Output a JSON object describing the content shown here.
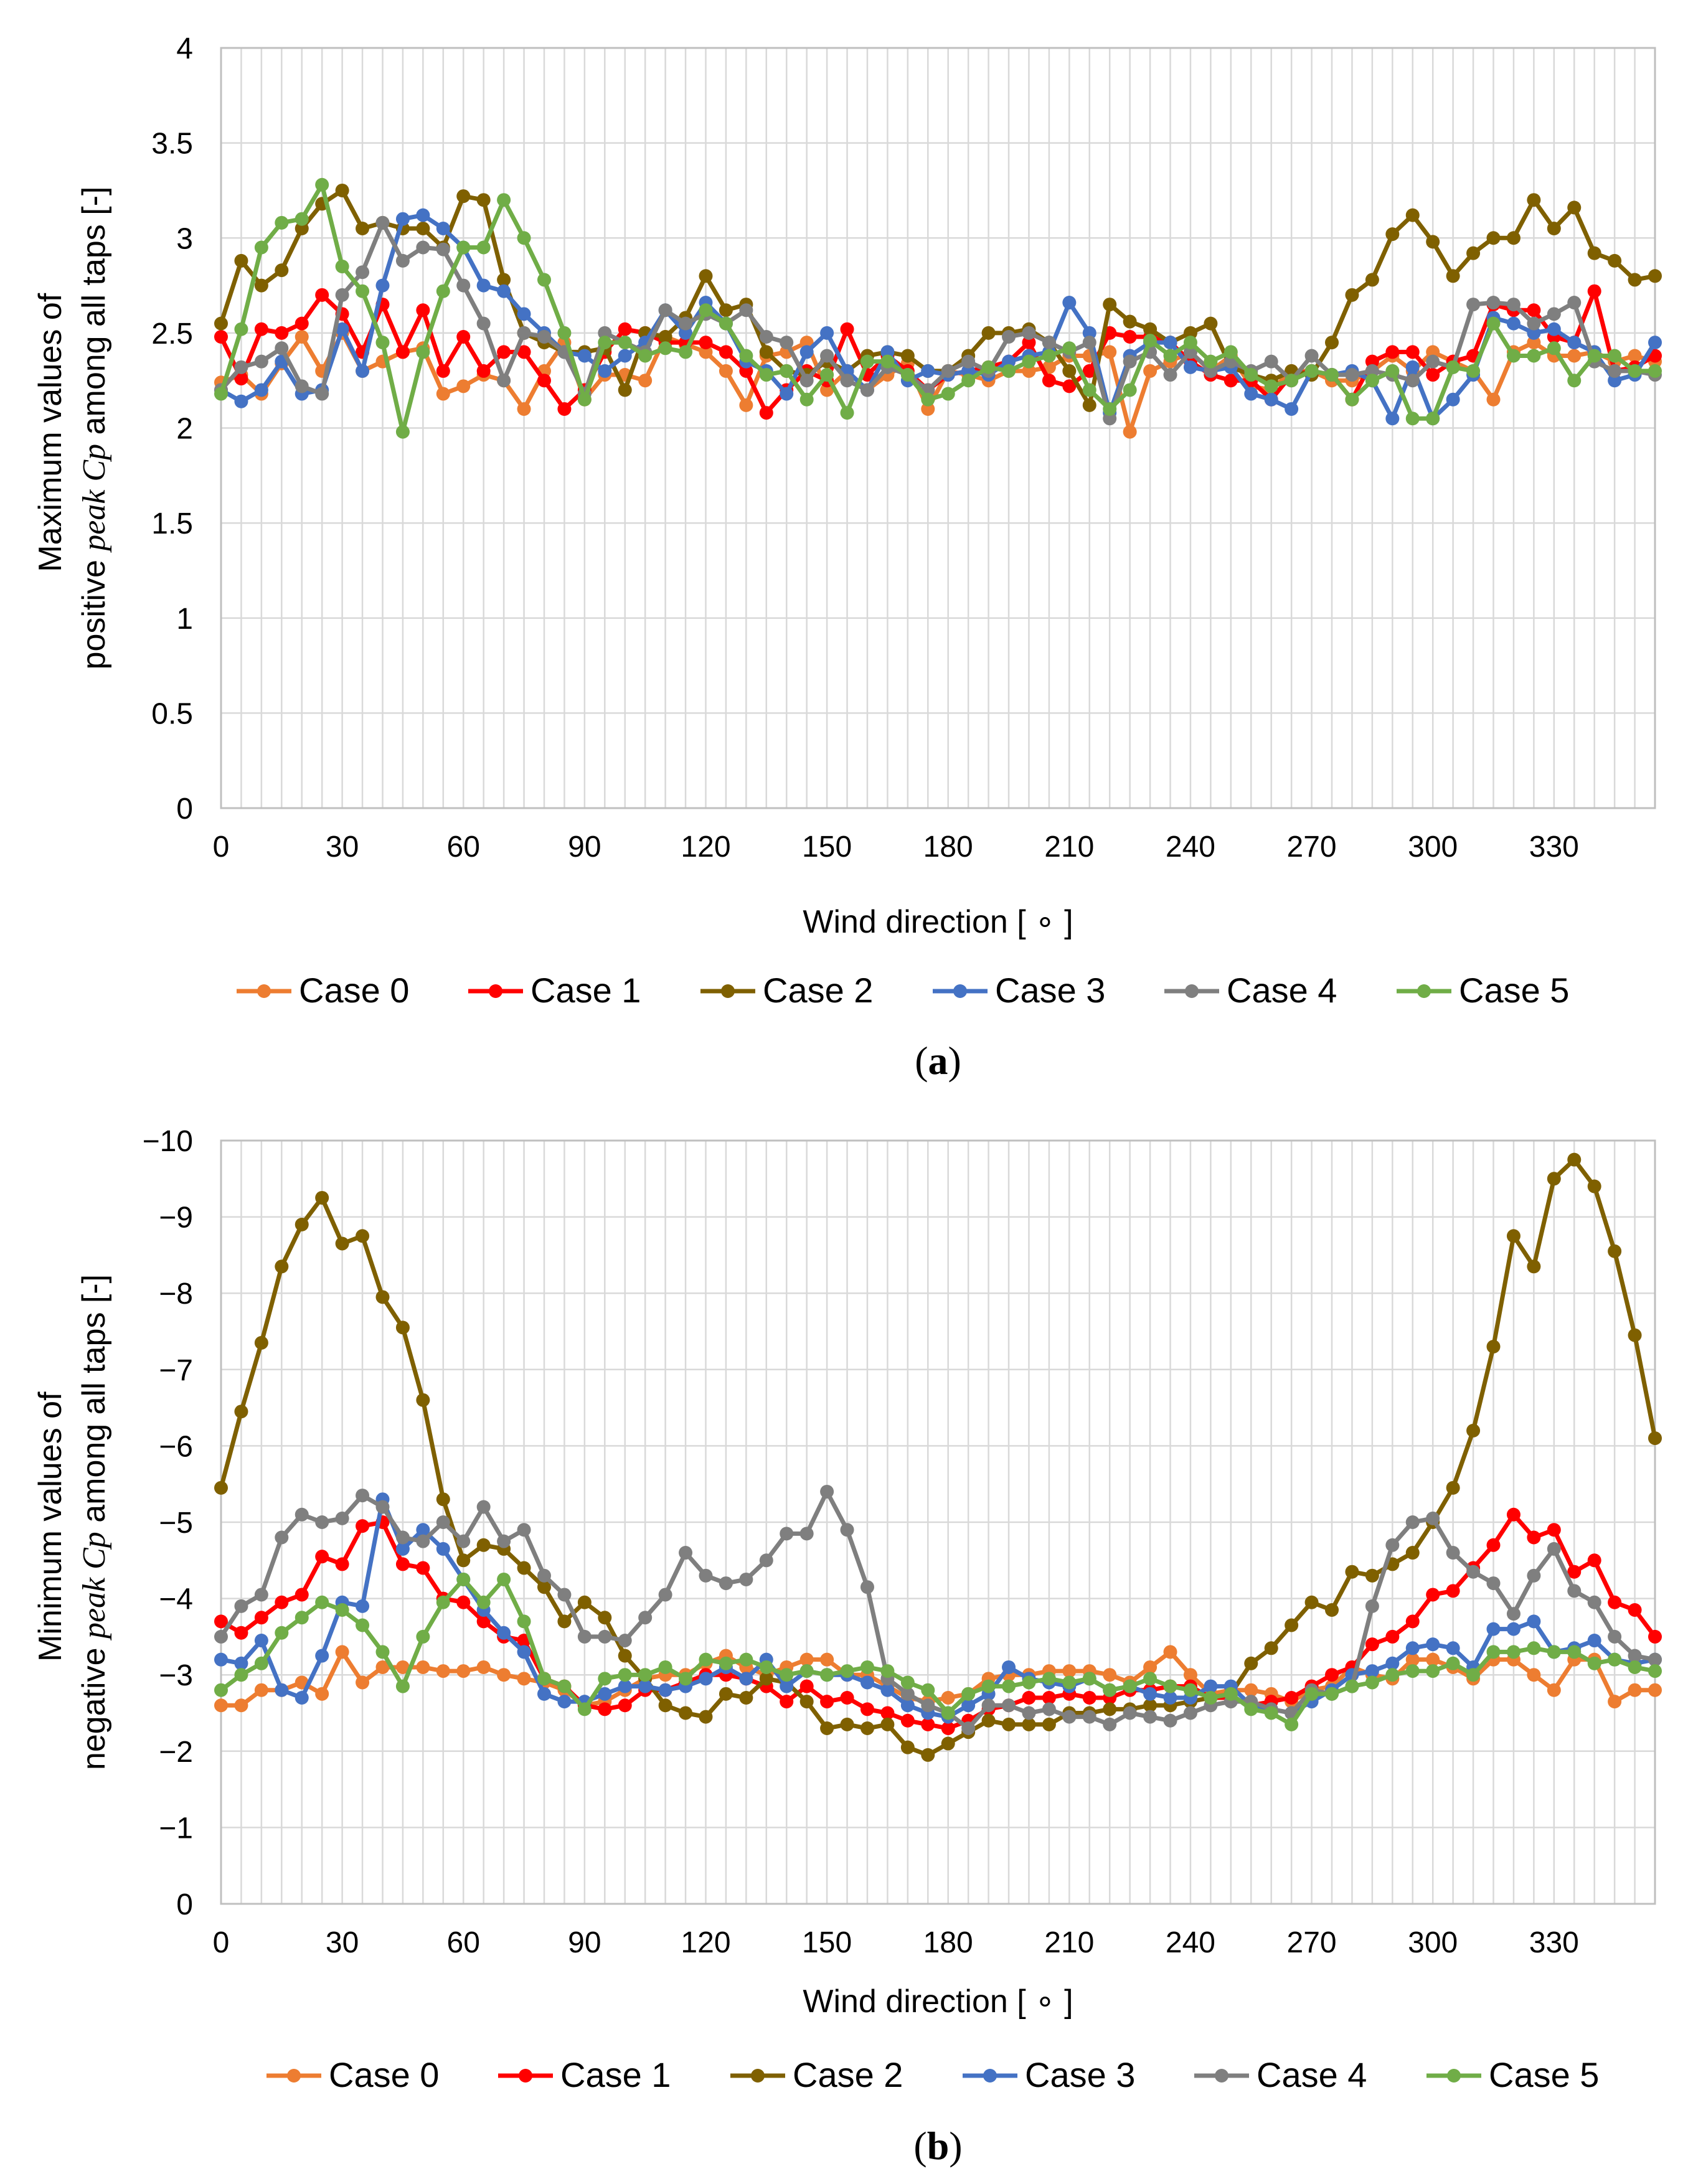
{
  "colors": {
    "Case 0": "#ED7D31",
    "Case 1": "#FF0000",
    "Case 2": "#7F6000",
    "Case 3": "#4472C4",
    "Case 4": "#7F7F7F",
    "Case 5": "#70AD47"
  },
  "chart_data": [
    {
      "type": "line",
      "panel": "a",
      "panel_label": {
        "open": "(",
        "letter": "a",
        "close": ")"
      },
      "xlabel": "Wind direction [ ∘ ]",
      "ylabel_line1": "Maximum values of",
      "ylabel_line2_pre": "positive ",
      "ylabel_line2_ital": "peak Cp",
      "ylabel_line2_post": " among all taps [-]",
      "xlim": [
        0,
        355
      ],
      "ylim": [
        0,
        4
      ],
      "y_inverted": false,
      "xticks": [
        0,
        30,
        60,
        90,
        120,
        150,
        180,
        210,
        240,
        270,
        300,
        330
      ],
      "yticks": [
        0,
        0.5,
        1,
        1.5,
        2,
        2.5,
        3,
        3.5,
        4
      ],
      "ytick_labels": [
        "0",
        "0.5",
        "1",
        "1.5",
        "2",
        "2.5",
        "3",
        "3.5",
        "4"
      ],
      "legend": [
        "Case 0",
        "Case 1",
        "Case 2",
        "Case 3",
        "Case 4",
        "Case 5"
      ],
      "series": [
        {
          "name": "Case 0",
          "values": [
            2.24,
            2.28,
            2.18,
            2.34,
            2.48,
            2.3,
            2.5,
            2.3,
            2.35,
            2.4,
            2.42,
            2.18,
            2.22,
            2.28,
            2.25,
            2.1,
            2.3,
            2.45,
            2.15,
            2.28,
            2.28,
            2.25,
            2.48,
            2.44,
            2.4,
            2.3,
            2.12,
            2.38,
            2.4,
            2.45,
            2.2,
            2.3,
            2.2,
            2.28,
            2.34,
            2.1,
            2.3,
            2.28,
            2.25,
            2.3,
            2.3,
            2.32,
            2.38,
            2.38,
            2.4,
            1.98,
            2.3,
            2.35,
            2.4,
            2.3,
            2.38,
            2.22,
            2.2,
            2.3,
            2.3,
            2.25,
            2.25,
            2.3,
            2.38,
            2.3,
            2.4,
            2.35,
            2.3,
            2.15,
            2.4,
            2.45,
            2.38,
            2.38,
            2.4,
            2.35,
            2.38,
            2.35
          ]
        },
        {
          "name": "Case 1",
          "values": [
            2.48,
            2.26,
            2.52,
            2.5,
            2.55,
            2.7,
            2.6,
            2.4,
            2.65,
            2.4,
            2.62,
            2.3,
            2.48,
            2.3,
            2.4,
            2.4,
            2.25,
            2.1,
            2.2,
            2.4,
            2.52,
            2.5,
            2.45,
            2.45,
            2.45,
            2.4,
            2.3,
            2.08,
            2.2,
            2.3,
            2.25,
            2.52,
            2.28,
            2.38,
            2.3,
            2.2,
            2.28,
            2.3,
            2.32,
            2.35,
            2.45,
            2.25,
            2.22,
            2.3,
            2.5,
            2.48,
            2.48,
            2.45,
            2.35,
            2.28,
            2.25,
            2.25,
            2.15,
            2.28,
            2.3,
            2.28,
            2.15,
            2.35,
            2.4,
            2.4,
            2.28,
            2.35,
            2.38,
            2.65,
            2.62,
            2.62,
            2.48,
            2.45,
            2.72,
            2.3,
            2.32,
            2.38
          ]
        },
        {
          "name": "Case 2",
          "values": [
            2.55,
            2.88,
            2.75,
            2.83,
            3.05,
            3.18,
            3.25,
            3.05,
            3.08,
            3.05,
            3.05,
            2.95,
            3.22,
            3.2,
            2.78,
            2.5,
            2.45,
            2.4,
            2.4,
            2.42,
            2.2,
            2.5,
            2.48,
            2.58,
            2.8,
            2.62,
            2.65,
            2.4,
            2.3,
            2.28,
            2.35,
            2.3,
            2.38,
            2.4,
            2.38,
            2.3,
            2.3,
            2.38,
            2.5,
            2.5,
            2.52,
            2.45,
            2.3,
            2.12,
            2.65,
            2.56,
            2.52,
            2.45,
            2.5,
            2.55,
            2.32,
            2.28,
            2.25,
            2.3,
            2.28,
            2.45,
            2.7,
            2.78,
            3.02,
            3.12,
            2.98,
            2.8,
            2.92,
            3.0,
            3.0,
            3.2,
            3.05,
            3.16,
            2.92,
            2.88,
            2.78,
            2.8
          ]
        },
        {
          "name": "Case 3",
          "values": [
            2.2,
            2.14,
            2.2,
            2.35,
            2.18,
            2.2,
            2.52,
            2.3,
            2.75,
            3.1,
            3.12,
            3.05,
            2.95,
            2.75,
            2.72,
            2.6,
            2.5,
            2.4,
            2.38,
            2.3,
            2.38,
            2.45,
            2.62,
            2.5,
            2.66,
            2.55,
            2.35,
            2.3,
            2.18,
            2.4,
            2.5,
            2.3,
            2.2,
            2.4,
            2.25,
            2.3,
            2.28,
            2.3,
            2.28,
            2.35,
            2.38,
            2.4,
            2.66,
            2.5,
            2.08,
            2.38,
            2.45,
            2.45,
            2.32,
            2.3,
            2.32,
            2.18,
            2.15,
            2.1,
            2.3,
            2.28,
            2.3,
            2.25,
            2.05,
            2.32,
            2.05,
            2.15,
            2.28,
            2.58,
            2.55,
            2.5,
            2.52,
            2.45,
            2.4,
            2.25,
            2.28,
            2.45
          ]
        },
        {
          "name": "Case 4",
          "values": [
            2.2,
            2.32,
            2.35,
            2.42,
            2.22,
            2.18,
            2.7,
            2.82,
            3.08,
            2.88,
            2.95,
            2.94,
            2.75,
            2.55,
            2.25,
            2.5,
            2.48,
            2.4,
            2.18,
            2.5,
            2.45,
            2.4,
            2.62,
            2.55,
            2.6,
            2.55,
            2.62,
            2.48,
            2.45,
            2.25,
            2.38,
            2.25,
            2.2,
            2.32,
            2.28,
            2.2,
            2.3,
            2.35,
            2.3,
            2.48,
            2.5,
            2.45,
            2.4,
            2.45,
            2.05,
            2.35,
            2.4,
            2.28,
            2.4,
            2.3,
            2.35,
            2.3,
            2.35,
            2.25,
            2.38,
            2.28,
            2.28,
            2.3,
            2.28,
            2.25,
            2.35,
            2.32,
            2.65,
            2.66,
            2.65,
            2.55,
            2.6,
            2.66,
            2.35,
            2.3,
            2.3,
            2.28
          ]
        },
        {
          "name": "Case 5",
          "values": [
            2.18,
            2.52,
            2.95,
            3.08,
            3.1,
            3.28,
            2.85,
            2.72,
            2.45,
            1.98,
            2.4,
            2.72,
            2.95,
            2.95,
            3.2,
            3.0,
            2.78,
            2.5,
            2.15,
            2.45,
            2.45,
            2.38,
            2.42,
            2.4,
            2.62,
            2.55,
            2.38,
            2.28,
            2.3,
            2.15,
            2.28,
            2.08,
            2.35,
            2.35,
            2.28,
            2.15,
            2.18,
            2.25,
            2.32,
            2.3,
            2.35,
            2.38,
            2.42,
            2.2,
            2.1,
            2.2,
            2.46,
            2.38,
            2.45,
            2.35,
            2.4,
            2.28,
            2.22,
            2.25,
            2.3,
            2.28,
            2.15,
            2.25,
            2.3,
            2.05,
            2.05,
            2.32,
            2.3,
            2.55,
            2.38,
            2.38,
            2.42,
            2.25,
            2.38,
            2.38,
            2.3,
            2.3
          ]
        }
      ]
    },
    {
      "type": "line",
      "panel": "b",
      "panel_label": {
        "open": "(",
        "letter": "b",
        "close": ")"
      },
      "xlabel": "Wind direction [ ∘ ]",
      "ylabel_line1": "Minimum values of",
      "ylabel_line2_pre": "negative ",
      "ylabel_line2_ital": "peak Cp",
      "ylabel_line2_post": " among all taps [-]",
      "xlim": [
        0,
        355
      ],
      "ylim": [
        0,
        -10
      ],
      "y_inverted": true,
      "xticks": [
        0,
        30,
        60,
        90,
        120,
        150,
        180,
        210,
        240,
        270,
        300,
        330
      ],
      "yticks": [
        0,
        -1,
        -2,
        -3,
        -4,
        -5,
        -6,
        -7,
        -8,
        -9,
        -10
      ],
      "ytick_labels": [
        "0",
        "−1",
        "−2",
        "−3",
        "−4",
        "−5",
        "−6",
        "−7",
        "−8",
        "−9",
        "−10"
      ],
      "legend": [
        "Case 0",
        "Case 1",
        "Case 2",
        "Case 3",
        "Case 4",
        "Case 5"
      ],
      "series": [
        {
          "name": "Case 0",
          "values": [
            -2.6,
            -2.6,
            -2.8,
            -2.8,
            -2.9,
            -2.75,
            -3.3,
            -2.9,
            -3.1,
            -3.1,
            -3.1,
            -3.05,
            -3.05,
            -3.1,
            -3.0,
            -2.95,
            -2.9,
            -2.8,
            -2.6,
            -2.65,
            -2.8,
            -2.95,
            -3.0,
            -3.0,
            -3.15,
            -3.25,
            -3.1,
            -3.0,
            -3.1,
            -3.2,
            -3.2,
            -3.0,
            -3.0,
            -2.85,
            -2.7,
            -2.65,
            -2.7,
            -2.75,
            -2.95,
            -3.0,
            -3.0,
            -3.05,
            -3.05,
            -3.05,
            -3.0,
            -2.9,
            -3.1,
            -3.3,
            -3.0,
            -2.75,
            -2.8,
            -2.8,
            -2.75,
            -2.65,
            -2.8,
            -2.85,
            -3.1,
            -3.0,
            -2.95,
            -3.2,
            -3.2,
            -3.1,
            -2.95,
            -3.2,
            -3.2,
            -3.0,
            -2.8,
            -3.2,
            -3.2,
            -2.65,
            -2.8,
            -2.8
          ]
        },
        {
          "name": "Case 1",
          "values": [
            -3.7,
            -3.55,
            -3.75,
            -3.95,
            -4.05,
            -4.55,
            -4.45,
            -4.95,
            -5.0,
            -4.45,
            -4.4,
            -4.0,
            -3.95,
            -3.7,
            -3.5,
            -3.45,
            -2.95,
            -2.85,
            -2.6,
            -2.55,
            -2.6,
            -2.8,
            -2.8,
            -2.9,
            -3.0,
            -3.0,
            -2.95,
            -2.85,
            -2.65,
            -2.85,
            -2.65,
            -2.7,
            -2.55,
            -2.5,
            -2.4,
            -2.35,
            -2.3,
            -2.4,
            -2.55,
            -2.6,
            -2.7,
            -2.7,
            -2.75,
            -2.7,
            -2.7,
            -2.8,
            -2.8,
            -2.85,
            -2.85,
            -2.7,
            -2.7,
            -2.6,
            -2.65,
            -2.7,
            -2.85,
            -3.0,
            -3.1,
            -3.4,
            -3.5,
            -3.7,
            -4.05,
            -4.1,
            -4.4,
            -4.7,
            -5.1,
            -4.8,
            -4.9,
            -4.35,
            -4.5,
            -3.95,
            -3.85,
            -3.5
          ]
        },
        {
          "name": "Case 2",
          "values": [
            -5.45,
            -6.45,
            -7.35,
            -8.35,
            -8.9,
            -9.25,
            -8.65,
            -8.75,
            -7.95,
            -7.55,
            -6.6,
            -5.3,
            -4.5,
            -4.7,
            -4.65,
            -4.4,
            -4.15,
            -3.7,
            -3.95,
            -3.75,
            -3.25,
            -2.95,
            -2.6,
            -2.5,
            -2.45,
            -2.75,
            -2.7,
            -2.95,
            -2.9,
            -2.65,
            -2.3,
            -2.35,
            -2.3,
            -2.35,
            -2.05,
            -1.95,
            -2.1,
            -2.25,
            -2.4,
            -2.35,
            -2.35,
            -2.35,
            -2.5,
            -2.5,
            -2.55,
            -2.55,
            -2.6,
            -2.6,
            -2.65,
            -2.7,
            -2.75,
            -3.15,
            -3.35,
            -3.65,
            -3.95,
            -3.85,
            -4.35,
            -4.3,
            -4.45,
            -4.6,
            -5.0,
            -5.45,
            -6.2,
            -7.3,
            -8.75,
            -8.35,
            -9.5,
            -9.75,
            -9.4,
            -8.55,
            -7.45,
            -6.1
          ]
        },
        {
          "name": "Case 3",
          "values": [
            -3.2,
            -3.15,
            -3.45,
            -2.8,
            -2.7,
            -3.25,
            -3.95,
            -3.9,
            -5.3,
            -4.65,
            -4.9,
            -4.65,
            -4.25,
            -3.85,
            -3.55,
            -3.3,
            -2.75,
            -2.65,
            -2.65,
            -2.75,
            -2.85,
            -2.85,
            -2.8,
            -2.85,
            -2.95,
            -3.1,
            -2.95,
            -3.2,
            -2.85,
            -3.05,
            -3.0,
            -3.0,
            -2.9,
            -2.8,
            -2.6,
            -2.5,
            -2.45,
            -2.6,
            -2.75,
            -3.1,
            -2.95,
            -2.9,
            -2.85,
            -2.95,
            -2.8,
            -2.85,
            -2.75,
            -2.7,
            -2.7,
            -2.85,
            -2.85,
            -2.6,
            -2.55,
            -2.5,
            -2.65,
            -2.8,
            -3.0,
            -3.05,
            -3.15,
            -3.35,
            -3.4,
            -3.35,
            -3.1,
            -3.6,
            -3.6,
            -3.7,
            -3.3,
            -3.35,
            -3.45,
            -3.2,
            -3.15,
            -3.2
          ]
        },
        {
          "name": "Case 4",
          "values": [
            -3.5,
            -3.9,
            -4.05,
            -4.8,
            -5.1,
            -5.0,
            -5.05,
            -5.35,
            -5.2,
            -4.8,
            -4.75,
            -5.0,
            -4.75,
            -5.2,
            -4.75,
            -4.9,
            -4.3,
            -4.05,
            -3.5,
            -3.5,
            -3.45,
            -3.75,
            -4.05,
            -4.6,
            -4.3,
            -4.2,
            -4.25,
            -4.5,
            -4.85,
            -4.85,
            -5.4,
            -4.9,
            -4.15,
            -2.95,
            -2.75,
            -2.6,
            -2.5,
            -2.3,
            -2.6,
            -2.6,
            -2.5,
            -2.55,
            -2.45,
            -2.45,
            -2.35,
            -2.5,
            -2.45,
            -2.4,
            -2.5,
            -2.6,
            -2.65,
            -2.65,
            -2.55,
            -2.5,
            -2.8,
            -2.75,
            -2.85,
            -3.9,
            -4.7,
            -5.0,
            -5.05,
            -4.6,
            -4.35,
            -4.2,
            -3.8,
            -4.3,
            -4.65,
            -4.1,
            -3.95,
            -3.5,
            -3.25,
            -3.2
          ]
        },
        {
          "name": "Case 5",
          "values": [
            -2.8,
            -3.0,
            -3.15,
            -3.55,
            -3.75,
            -3.95,
            -3.85,
            -3.65,
            -3.3,
            -2.85,
            -3.5,
            -3.95,
            -4.25,
            -3.95,
            -4.25,
            -3.7,
            -2.95,
            -2.85,
            -2.55,
            -2.95,
            -3.0,
            -3.0,
            -3.1,
            -2.95,
            -3.2,
            -3.15,
            -3.2,
            -3.1,
            -3.0,
            -3.05,
            -3.0,
            -3.05,
            -3.1,
            -3.05,
            -2.9,
            -2.8,
            -2.5,
            -2.75,
            -2.85,
            -2.85,
            -2.9,
            -2.95,
            -2.9,
            -2.95,
            -2.8,
            -2.85,
            -2.95,
            -2.85,
            -2.8,
            -2.7,
            -2.75,
            -2.55,
            -2.5,
            -2.35,
            -2.75,
            -2.75,
            -2.85,
            -2.9,
            -3.0,
            -3.05,
            -3.05,
            -3.15,
            -3.0,
            -3.3,
            -3.3,
            -3.35,
            -3.3,
            -3.3,
            -3.15,
            -3.2,
            -3.1,
            -3.05
          ]
        }
      ]
    }
  ]
}
